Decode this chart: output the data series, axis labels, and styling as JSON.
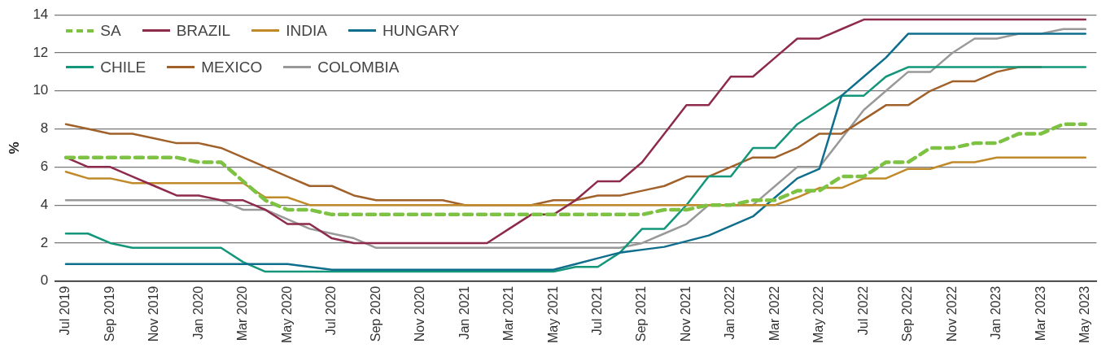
{
  "chart_data": {
    "type": "line",
    "ylabel": "%",
    "categories": [
      "Jul 2019",
      null,
      "Sep 2019",
      null,
      "Nov 2019",
      null,
      "Jan 2020",
      null,
      "Mar 2020",
      null,
      "May 2020",
      null,
      "Jul 2020",
      null,
      "Sep 2020",
      null,
      "Nov 2020",
      null,
      "Jan 2021",
      null,
      "Mar 2021",
      null,
      "May 2021",
      null,
      "Jul 2021",
      null,
      "Sep 2021",
      null,
      "Nov 2021",
      null,
      "Jan 2022",
      null,
      "Mar 2022",
      null,
      "May 2022",
      null,
      "Jul 2022",
      null,
      "Sep 2022",
      null,
      "Nov 2022",
      null,
      "Jan 2023",
      null,
      "Mar 2023",
      null,
      "May 2023"
    ],
    "series": [
      {
        "name": "SA",
        "color": "#7dc242",
        "line_style": "dashed",
        "values": [
          6.5,
          6.5,
          6.5,
          6.5,
          6.5,
          6.5,
          6.25,
          6.25,
          5.25,
          4.25,
          3.75,
          3.75,
          3.5,
          3.5,
          3.5,
          3.5,
          3.5,
          3.5,
          3.5,
          3.5,
          3.5,
          3.5,
          3.5,
          3.5,
          3.5,
          3.5,
          3.5,
          3.75,
          3.75,
          4.0,
          4.0,
          4.25,
          4.25,
          4.75,
          4.75,
          5.5,
          5.5,
          6.25,
          6.25,
          7.0,
          7.0,
          7.25,
          7.25,
          7.75,
          7.75,
          8.25,
          8.25
        ]
      },
      {
        "name": "BRAZIL",
        "color": "#8e2a4a",
        "values": [
          6.5,
          6.0,
          6.0,
          5.5,
          5.0,
          4.5,
          4.5,
          4.25,
          4.25,
          3.75,
          3.0,
          3.0,
          2.25,
          2.0,
          2.0,
          2.0,
          2.0,
          2.0,
          2.0,
          2.0,
          2.75,
          3.5,
          3.5,
          4.25,
          5.25,
          5.25,
          6.25,
          7.75,
          9.25,
          9.25,
          10.75,
          10.75,
          11.75,
          12.75,
          12.75,
          13.25,
          13.75,
          13.75,
          13.75,
          13.75,
          13.75,
          13.75,
          13.75,
          13.75,
          13.75,
          13.75,
          13.75
        ]
      },
      {
        "name": "INDIA",
        "color": "#c08a2a",
        "values": [
          5.75,
          5.4,
          5.4,
          5.15,
          5.15,
          5.15,
          5.15,
          5.15,
          5.15,
          4.4,
          4.4,
          4.0,
          4.0,
          4.0,
          4.0,
          4.0,
          4.0,
          4.0,
          4.0,
          4.0,
          4.0,
          4.0,
          4.0,
          4.0,
          4.0,
          4.0,
          4.0,
          4.0,
          4.0,
          4.0,
          4.0,
          4.0,
          4.0,
          4.4,
          4.9,
          4.9,
          5.4,
          5.4,
          5.9,
          5.9,
          6.25,
          6.25,
          6.5,
          6.5,
          6.5,
          6.5,
          6.5
        ]
      },
      {
        "name": "HUNGARY",
        "color": "#0e6e8c",
        "values": [
          0.9,
          0.9,
          0.9,
          0.9,
          0.9,
          0.9,
          0.9,
          0.9,
          0.9,
          0.9,
          0.9,
          0.75,
          0.6,
          0.6,
          0.6,
          0.6,
          0.6,
          0.6,
          0.6,
          0.6,
          0.6,
          0.6,
          0.6,
          0.9,
          1.2,
          1.5,
          1.65,
          1.8,
          2.1,
          2.4,
          2.9,
          3.4,
          4.4,
          5.4,
          5.9,
          9.75,
          10.75,
          11.75,
          13.0,
          13.0,
          13.0,
          13.0,
          13.0,
          13.0,
          13.0,
          13.0,
          13.0
        ]
      },
      {
        "name": "CHILE",
        "color": "#13967a",
        "values": [
          2.5,
          2.5,
          2.0,
          1.75,
          1.75,
          1.75,
          1.75,
          1.75,
          1.0,
          0.5,
          0.5,
          0.5,
          0.5,
          0.5,
          0.5,
          0.5,
          0.5,
          0.5,
          0.5,
          0.5,
          0.5,
          0.5,
          0.5,
          0.75,
          0.75,
          1.5,
          2.75,
          2.75,
          4.0,
          5.5,
          5.5,
          7.0,
          7.0,
          8.25,
          9.0,
          9.75,
          9.75,
          10.75,
          11.25,
          11.25,
          11.25,
          11.25,
          11.25,
          11.25,
          11.25,
          11.25,
          11.25
        ]
      },
      {
        "name": "MEXICO",
        "color": "#a0612a",
        "values": [
          8.25,
          8.0,
          7.75,
          7.75,
          7.5,
          7.25,
          7.25,
          7.0,
          6.5,
          6.0,
          5.5,
          5.0,
          5.0,
          4.5,
          4.25,
          4.25,
          4.25,
          4.25,
          4.0,
          4.0,
          4.0,
          4.0,
          4.25,
          4.25,
          4.5,
          4.5,
          4.75,
          5.0,
          5.5,
          5.5,
          6.0,
          6.5,
          6.5,
          7.0,
          7.75,
          7.75,
          8.5,
          9.25,
          9.25,
          10.0,
          10.5,
          10.5,
          11.0,
          11.25,
          11.25,
          null,
          null
        ]
      },
      {
        "name": "COLOMBIA",
        "color": "#999999",
        "values": [
          4.25,
          4.25,
          4.25,
          4.25,
          4.25,
          4.25,
          4.25,
          4.25,
          3.75,
          3.75,
          3.25,
          2.75,
          2.5,
          2.25,
          1.75,
          1.75,
          1.75,
          1.75,
          1.75,
          1.75,
          1.75,
          1.75,
          1.75,
          1.75,
          1.75,
          1.75,
          2.0,
          2.5,
          3.0,
          4.0,
          4.0,
          4.0,
          5.0,
          6.0,
          6.0,
          7.5,
          9.0,
          10.0,
          11.0,
          11.0,
          12.0,
          12.75,
          12.75,
          13.0,
          13.0,
          13.25,
          13.25
        ]
      }
    ],
    "ylim": [
      0,
      14
    ],
    "yticks": [
      0,
      2,
      4,
      6,
      8,
      10,
      12,
      14
    ],
    "grid": "y",
    "legend": "top left",
    "marker": "none"
  }
}
